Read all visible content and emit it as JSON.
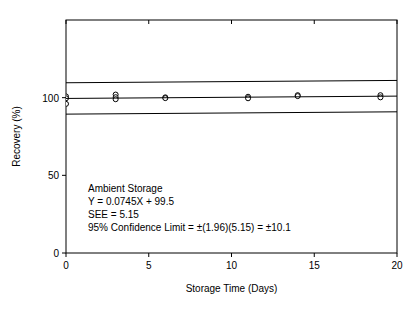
{
  "chart_data": {
    "type": "scatter",
    "x_label": "Storage Time (Days)",
    "y_label": "Recovery (%)",
    "annotations": [
      "Ambient Storage",
      "Y = 0.0745X + 99.5",
      "SEE = 5.15",
      "95% Confidence Limit = ±(1.96)(5.15) = ±10.1"
    ],
    "xlim": [
      0,
      20
    ],
    "xticks": [
      0,
      5,
      10,
      15,
      20
    ],
    "ylim": [
      0,
      150
    ],
    "yticks": [
      0,
      50,
      100
    ],
    "grid": false,
    "color": "#000000",
    "series": [
      {
        "type": "scatter",
        "marker": "open-circle",
        "color": "#000000",
        "x": [
          0,
          0,
          0,
          3,
          3,
          3,
          6,
          6,
          11,
          11,
          14,
          14,
          19,
          19
        ],
        "values": [
          100.8,
          99.6,
          96.0,
          102.0,
          100.3,
          99.0,
          100.2,
          99.7,
          100.6,
          99.6,
          101.6,
          101.0,
          101.6,
          100.2
        ]
      },
      {
        "type": "line",
        "line_style": "solid",
        "color": "#000000",
        "x": [
          0,
          20
        ],
        "values": [
          99.5,
          101.0
        ]
      },
      {
        "type": "line",
        "line_style": "solid",
        "color": "#000000",
        "x": [
          0,
          20
        ],
        "values": [
          109.6,
          111.1
        ]
      },
      {
        "type": "line",
        "line_style": "solid",
        "color": "#000000",
        "x": [
          0,
          20
        ],
        "values": [
          89.4,
          90.9
        ]
      }
    ]
  }
}
